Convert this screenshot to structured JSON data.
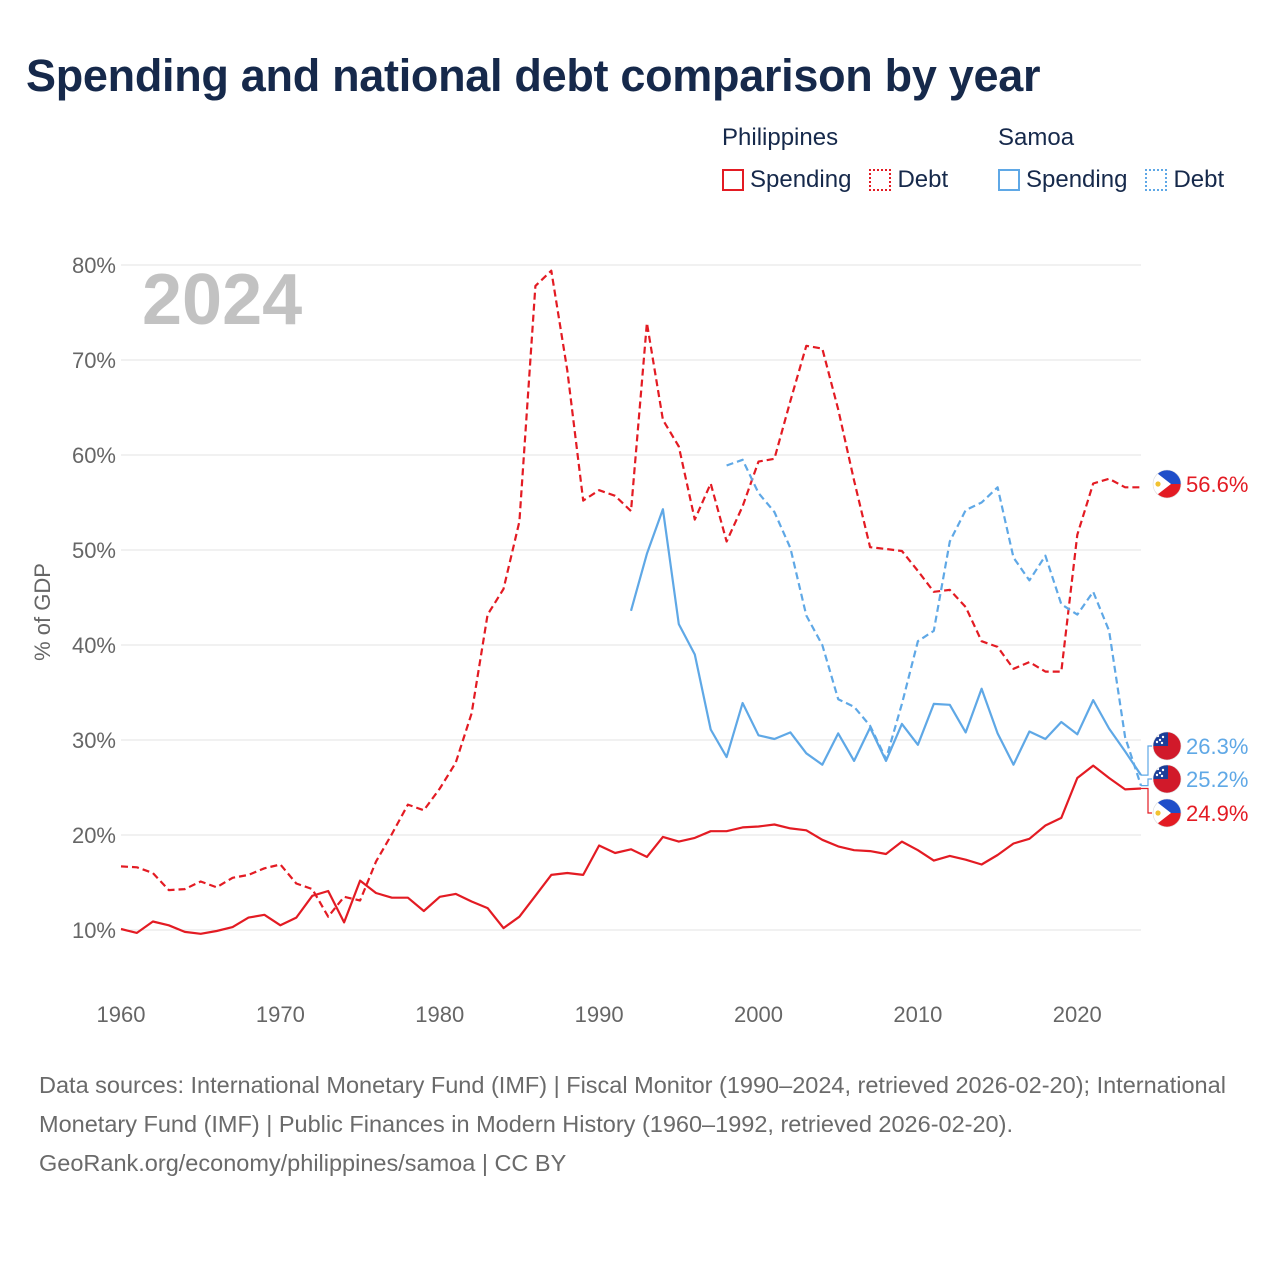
{
  "title": "Spending and national debt comparison by year",
  "year_watermark": "2024",
  "legend": {
    "groups": [
      {
        "name": "Philippines",
        "color": "#e31b23",
        "spending_label": "Spending",
        "debt_label": "Debt"
      },
      {
        "name": "Samoa",
        "color": "#5fa8e6",
        "spending_label": "Spending",
        "debt_label": "Debt"
      }
    ]
  },
  "footer": {
    "sources": "Data sources: International Monetary Fund (IMF) | Fiscal Monitor (1990–2024, retrieved 2026-02-20); International Monetary Fund (IMF) | Public Finances in Modern History (1960–1992, retrieved 2026-02-20).",
    "credit": "GeoRank.org/economy/philippines/samoa | CC BY"
  },
  "chart_data": {
    "type": "line",
    "title": "Spending and national debt comparison by year",
    "ylabel": "% of GDP",
    "xlabel": "",
    "xlim": [
      1960,
      2024
    ],
    "ylim": [
      5,
      82
    ],
    "y_ticks": [
      10,
      20,
      30,
      40,
      50,
      60,
      70,
      80
    ],
    "y_tick_labels": [
      "10%",
      "20%",
      "30%",
      "40%",
      "50%",
      "60%",
      "70%",
      "80%"
    ],
    "x_ticks": [
      1960,
      1970,
      1980,
      1990,
      2000,
      2010,
      2020
    ],
    "x_tick_labels": [
      "1960",
      "1970",
      "1980",
      "1990",
      "2000",
      "2010",
      "2020"
    ],
    "series": [
      {
        "name": "Philippines Debt",
        "country": "Philippines",
        "kind": "debt",
        "color": "#e31b23",
        "dashed": true,
        "x": [
          1960,
          1961,
          1962,
          1963,
          1964,
          1965,
          1966,
          1967,
          1968,
          1969,
          1970,
          1971,
          1972,
          1973,
          1974,
          1975,
          1976,
          1977,
          1978,
          1979,
          1980,
          1981,
          1982,
          1983,
          1984,
          1985,
          1986,
          1987,
          1988,
          1989,
          1990,
          1991,
          1992,
          1993,
          1994,
          1995,
          1996,
          1997,
          1998,
          1999,
          2000,
          2001,
          2002,
          2003,
          2004,
          2005,
          2006,
          2007,
          2008,
          2009,
          2010,
          2011,
          2012,
          2013,
          2014,
          2015,
          2016,
          2017,
          2018,
          2019,
          2020,
          2021,
          2022,
          2023,
          2024
        ],
        "values": [
          16.7,
          16.6,
          16.0,
          14.2,
          14.3,
          15.1,
          14.5,
          15.5,
          15.8,
          16.5,
          16.9,
          14.9,
          14.3,
          11.4,
          13.5,
          13.1,
          17.2,
          20.1,
          23.2,
          22.6,
          24.9,
          27.6,
          32.8,
          43.2,
          45.9,
          53.0,
          77.8,
          79.4,
          68.9,
          55.2,
          56.3,
          55.7,
          54.1,
          73.9,
          63.7,
          60.9,
          53.2,
          57.0,
          50.9,
          54.6,
          59.3,
          59.6,
          65.7,
          71.5,
          71.2,
          64.8,
          57.3,
          50.3,
          50.1,
          49.9,
          47.8,
          45.6,
          45.8,
          44.0,
          40.4,
          39.8,
          37.5,
          38.2,
          37.2,
          37.2,
          51.6,
          57.0,
          57.5,
          56.6,
          56.6
        ]
      },
      {
        "name": "Philippines Spending",
        "country": "Philippines",
        "kind": "spending",
        "color": "#e31b23",
        "dashed": false,
        "x": [
          1960,
          1961,
          1962,
          1963,
          1964,
          1965,
          1966,
          1967,
          1968,
          1969,
          1970,
          1971,
          1972,
          1973,
          1974,
          1975,
          1976,
          1977,
          1978,
          1979,
          1980,
          1981,
          1982,
          1983,
          1984,
          1985,
          1986,
          1987,
          1988,
          1989,
          1990,
          1991,
          1992,
          1993,
          1994,
          1995,
          1996,
          1997,
          1998,
          1999,
          2000,
          2001,
          2002,
          2003,
          2004,
          2005,
          2006,
          2007,
          2008,
          2009,
          2010,
          2011,
          2012,
          2013,
          2014,
          2015,
          2016,
          2017,
          2018,
          2019,
          2020,
          2021,
          2022,
          2023,
          2024
        ],
        "values": [
          10.1,
          9.7,
          10.9,
          10.5,
          9.8,
          9.6,
          9.9,
          10.3,
          11.3,
          11.6,
          10.5,
          11.3,
          13.6,
          14.1,
          10.8,
          15.2,
          13.9,
          13.4,
          13.4,
          12.0,
          13.5,
          13.8,
          13.0,
          12.3,
          10.2,
          11.4,
          13.6,
          15.8,
          16.0,
          15.8,
          18.9,
          18.1,
          18.5,
          17.7,
          19.8,
          19.3,
          19.7,
          20.4,
          20.4,
          20.8,
          20.9,
          21.1,
          20.7,
          20.5,
          19.5,
          18.8,
          18.4,
          18.3,
          18.0,
          19.3,
          18.4,
          17.3,
          17.8,
          17.4,
          16.9,
          17.9,
          19.1,
          19.6,
          21.0,
          21.8,
          26.0,
          27.3,
          26.0,
          24.8,
          24.9
        ]
      },
      {
        "name": "Samoa Debt",
        "country": "Samoa",
        "kind": "debt",
        "color": "#5fa8e6",
        "dashed": true,
        "x": [
          1998,
          1999,
          2000,
          2001,
          2002,
          2003,
          2004,
          2005,
          2006,
          2007,
          2008,
          2009,
          2010,
          2011,
          2012,
          2013,
          2014,
          2015,
          2016,
          2017,
          2018,
          2019,
          2020,
          2021,
          2022,
          2023,
          2024
        ],
        "values": [
          58.9,
          59.5,
          56.0,
          54.0,
          50.2,
          43.1,
          40.0,
          34.3,
          33.5,
          31.5,
          28.0,
          33.8,
          40.4,
          41.5,
          50.9,
          54.2,
          55.0,
          56.6,
          49.2,
          46.8,
          49.4,
          44.3,
          43.2,
          45.6,
          41.5,
          30.3,
          25.2
        ]
      },
      {
        "name": "Samoa Spending",
        "country": "Samoa",
        "kind": "spending",
        "color": "#5fa8e6",
        "dashed": false,
        "x": [
          1992,
          1993,
          1994,
          1995,
          1996,
          1997,
          1998,
          1999,
          2000,
          2001,
          2002,
          2003,
          2004,
          2005,
          2006,
          2007,
          2008,
          2009,
          2010,
          2011,
          2012,
          2013,
          2014,
          2015,
          2016,
          2017,
          2018,
          2019,
          2020,
          2021,
          2022,
          2023,
          2024
        ],
        "values": [
          43.6,
          49.6,
          54.3,
          42.2,
          39.0,
          31.1,
          28.2,
          33.9,
          30.5,
          30.1,
          30.8,
          28.6,
          27.4,
          30.7,
          27.8,
          31.3,
          27.8,
          31.7,
          29.5,
          33.8,
          33.7,
          30.8,
          35.4,
          30.7,
          27.4,
          30.9,
          30.1,
          31.9,
          30.6,
          34.2,
          31.2,
          28.8,
          26.3
        ]
      }
    ],
    "end_labels": [
      {
        "text": "56.6%",
        "series": "Philippines Debt",
        "country": "Philippines",
        "color": "#e31b23",
        "value": 56.6
      },
      {
        "text": "26.3%",
        "series": "Samoa Spending",
        "country": "Samoa",
        "color": "#5fa8e6",
        "value": 26.3
      },
      {
        "text": "25.2%",
        "series": "Samoa Debt",
        "country": "Samoa",
        "color": "#5fa8e6",
        "value": 25.2
      },
      {
        "text": "24.9%",
        "series": "Philippines Spending",
        "country": "Philippines",
        "color": "#e31b23",
        "value": 24.9
      }
    ]
  }
}
